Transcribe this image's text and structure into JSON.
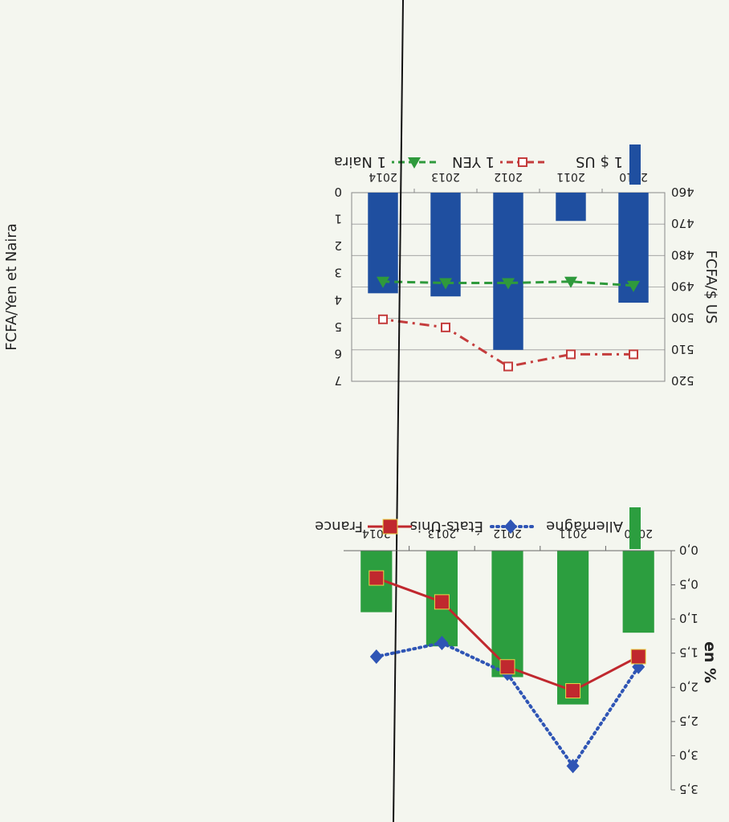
{
  "chart_data": [
    {
      "type": "bar+line",
      "title": "",
      "categories": [
        "2010",
        "2011",
        "2012",
        "2013",
        "2014"
      ],
      "left_axis": {
        "label": "FCFA/$ US",
        "ylim": [
          460,
          520
        ],
        "ticks": [
          "460",
          "470",
          "480",
          "490",
          "500",
          "510",
          "520"
        ]
      },
      "right_axis": {
        "label": "FCFA/Yen et Naira",
        "ylim": [
          0,
          7
        ],
        "ticks": [
          "0",
          "1",
          "2",
          "3",
          "4",
          "5",
          "6",
          "7"
        ]
      },
      "series": [
        {
          "name": "1 $ US",
          "kind": "bar",
          "axis": "left",
          "color": "#1f4fa0",
          "values": [
            495,
            469,
            510,
            493,
            492
          ]
        },
        {
          "name": "1 YEN",
          "kind": "line",
          "axis": "right",
          "color": "#c43c3c",
          "style": "dash-dot",
          "marker": "open-square",
          "values": [
            6.0,
            6.0,
            6.45,
            5.0,
            4.7
          ]
        },
        {
          "name": "1 Naira",
          "kind": "line",
          "axis": "right",
          "color": "#2f9a3c",
          "style": "dashed",
          "marker": "triangle",
          "values": [
            3.45,
            3.3,
            3.35,
            3.35,
            3.3
          ]
        }
      ],
      "legend": {
        "position": "bottom",
        "items": [
          "1 $ US",
          "1 YEN",
          "1 Naira"
        ]
      },
      "grid": true
    },
    {
      "type": "bar+line",
      "title": "",
      "categories": [
        "2010",
        "2011",
        "2012",
        "2013",
        "2014"
      ],
      "ylabel": "en %",
      "ylim": [
        0,
        3.5
      ],
      "ticks": [
        "0,0",
        "0,5",
        "1,0",
        "1,5",
        "2,0",
        "2,5",
        "3,0",
        "3,5"
      ],
      "series": [
        {
          "name": "Allemagne",
          "kind": "bar",
          "color": "#2c9e3f",
          "values": [
            1.2,
            2.25,
            1.85,
            1.4,
            0.9
          ]
        },
        {
          "name": "États-Unis",
          "kind": "line",
          "color": "#2f55b5",
          "style": "dotted",
          "marker": "diamond",
          "values": [
            1.7,
            3.15,
            1.8,
            1.35,
            1.55
          ]
        },
        {
          "name": "France",
          "kind": "line",
          "color": "#c0282e",
          "style": "solid",
          "marker": "square",
          "values": [
            1.55,
            2.05,
            1.7,
            0.75,
            0.4
          ]
        }
      ],
      "legend": {
        "position": "top",
        "items": [
          "Allemagne",
          "États-Unis",
          "France"
        ]
      },
      "grid": false
    }
  ]
}
